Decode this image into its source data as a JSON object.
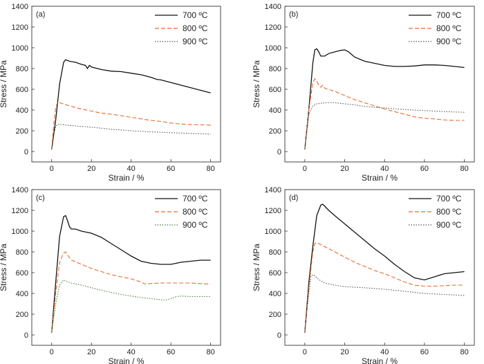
{
  "chart_data": [
    {
      "type": "line",
      "panel_label": "(a)",
      "xlabel": "Strain / %",
      "ylabel": "Stress / MPa",
      "xlim": [
        -10,
        85
      ],
      "ylim": [
        -100,
        1400
      ],
      "xticks": [
        "0",
        "20",
        "40",
        "60",
        "80"
      ],
      "yticks": [
        "0",
        "200",
        "400",
        "600",
        "800",
        "1000",
        "1200",
        "1400"
      ],
      "legend_position": "top-right",
      "series": [
        {
          "name": "700 ºC",
          "color": "#111111",
          "dash": "solid",
          "x": [
            0,
            2,
            4,
            6,
            7,
            9,
            12,
            15,
            17,
            18,
            19,
            20,
            25,
            30,
            35,
            40,
            45,
            50,
            53,
            55,
            60,
            65,
            70,
            75,
            80
          ],
          "y": [
            20,
            300,
            650,
            860,
            885,
            870,
            860,
            840,
            830,
            800,
            830,
            815,
            790,
            775,
            770,
            755,
            740,
            715,
            695,
            690,
            665,
            640,
            615,
            590,
            565
          ]
        },
        {
          "name": "800 ºC",
          "color": "#e8692e",
          "dash": "6,3",
          "x": [
            0,
            1,
            2,
            3,
            5,
            10,
            15,
            20,
            25,
            30,
            40,
            50,
            55,
            60,
            65,
            70,
            75,
            80
          ],
          "y": [
            20,
            250,
            420,
            478,
            465,
            435,
            410,
            390,
            370,
            360,
            330,
            300,
            290,
            275,
            265,
            260,
            258,
            255
          ]
        },
        {
          "name": "900 ºC",
          "color": "#555555",
          "dash": "1.5,2",
          "x": [
            0,
            1,
            2,
            3,
            5,
            10,
            20,
            30,
            40,
            50,
            60,
            70,
            80
          ],
          "y": [
            20,
            160,
            240,
            262,
            260,
            250,
            235,
            215,
            200,
            190,
            182,
            175,
            168
          ]
        }
      ]
    },
    {
      "type": "line",
      "panel_label": "(b)",
      "xlabel": "Strain / %",
      "ylabel": "Stress / MPa",
      "xlim": [
        -10,
        85
      ],
      "ylim": [
        -100,
        1400
      ],
      "xticks": [
        "0",
        "20",
        "40",
        "60",
        "80"
      ],
      "yticks": [
        "0",
        "200",
        "400",
        "600",
        "800",
        "1000",
        "1200",
        "1400"
      ],
      "legend_position": "top-right",
      "series": [
        {
          "name": "700 ºC",
          "color": "#111111",
          "dash": "solid",
          "x": [
            0,
            2,
            4,
            5,
            6,
            7,
            8,
            10,
            12,
            15,
            18,
            20,
            22,
            25,
            30,
            35,
            40,
            45,
            50,
            55,
            60,
            65,
            70,
            75,
            80
          ],
          "y": [
            20,
            400,
            850,
            980,
            990,
            960,
            920,
            920,
            945,
            960,
            975,
            980,
            960,
            910,
            870,
            850,
            830,
            820,
            820,
            825,
            835,
            835,
            830,
            820,
            810
          ]
        },
        {
          "name": "800 ºC",
          "color": "#e8692e",
          "dash": "6,3",
          "x": [
            0,
            2,
            4,
            5,
            6,
            7,
            8,
            9,
            10,
            15,
            20,
            25,
            30,
            35,
            40,
            45,
            50,
            55,
            60,
            65,
            70,
            75,
            80
          ],
          "y": [
            20,
            400,
            660,
            700,
            680,
            640,
            620,
            640,
            610,
            580,
            540,
            500,
            470,
            440,
            410,
            385,
            360,
            335,
            320,
            315,
            305,
            300,
            300
          ]
        },
        {
          "name": "900 ºC",
          "color": "#555555",
          "dash": "1.5,2",
          "x": [
            0,
            2,
            4,
            6,
            8,
            10,
            15,
            20,
            25,
            30,
            40,
            50,
            60,
            70,
            80
          ],
          "y": [
            20,
            350,
            440,
            460,
            465,
            470,
            470,
            460,
            450,
            435,
            420,
            405,
            395,
            385,
            378
          ]
        }
      ]
    },
    {
      "type": "line",
      "panel_label": "(c)",
      "xlabel": "Strain / %",
      "ylabel": "Stress / MPa",
      "xlim": [
        -10,
        85
      ],
      "ylim": [
        -100,
        1400
      ],
      "xticks": [
        "0",
        "20",
        "40",
        "60",
        "80"
      ],
      "yticks": [
        "0",
        "200",
        "400",
        "600",
        "800",
        "1000",
        "1200",
        "1400"
      ],
      "legend_position": "top-right",
      "series": [
        {
          "name": "700 ºC",
          "color": "#111111",
          "dash": "solid",
          "x": [
            0,
            2,
            4,
            6,
            7,
            8,
            9,
            10,
            12,
            15,
            20,
            25,
            30,
            35,
            40,
            45,
            50,
            55,
            60,
            65,
            70,
            75,
            80
          ],
          "y": [
            20,
            500,
            950,
            1140,
            1150,
            1100,
            1040,
            1020,
            1020,
            1000,
            980,
            940,
            880,
            820,
            760,
            710,
            690,
            680,
            680,
            700,
            710,
            720,
            720
          ]
        },
        {
          "name": "800 ºC",
          "color": "#e8692e",
          "dash": "6,3",
          "x": [
            0,
            2,
            4,
            6,
            7,
            8,
            10,
            15,
            20,
            25,
            30,
            35,
            40,
            45,
            47,
            50,
            55,
            60,
            65,
            70,
            75,
            80
          ],
          "y": [
            20,
            400,
            700,
            790,
            800,
            770,
            720,
            680,
            640,
            610,
            580,
            560,
            540,
            510,
            490,
            495,
            500,
            500,
            500,
            500,
            495,
            490
          ]
        },
        {
          "name": "900 ºC",
          "color": "#4a7a3a",
          "dash": "1.5,2",
          "x": [
            0,
            2,
            4,
            6,
            7,
            8,
            10,
            15,
            20,
            25,
            30,
            35,
            40,
            45,
            50,
            55,
            57,
            60,
            63,
            65,
            70,
            75,
            80
          ],
          "y": [
            20,
            300,
            480,
            530,
            520,
            510,
            500,
            480,
            455,
            430,
            410,
            390,
            375,
            360,
            350,
            340,
            335,
            350,
            370,
            375,
            370,
            370,
            370
          ]
        }
      ]
    },
    {
      "type": "line",
      "panel_label": "(d)",
      "xlabel": "Strain / %",
      "ylabel": "Stress / MPa",
      "xlim": [
        -10,
        85
      ],
      "ylim": [
        -100,
        1400
      ],
      "xticks": [
        "0",
        "20",
        "40",
        "60",
        "80"
      ],
      "yticks": [
        "0",
        "200",
        "400",
        "600",
        "800",
        "1000",
        "1200",
        "1400"
      ],
      "legend_position": "top-right",
      "series": [
        {
          "name": "700 ºC",
          "color": "#111111",
          "dash": "solid",
          "x": [
            0,
            2,
            4,
            6,
            8,
            9,
            10,
            12,
            15,
            20,
            25,
            30,
            35,
            40,
            45,
            50,
            55,
            60,
            65,
            70,
            75,
            80
          ],
          "y": [
            20,
            500,
            850,
            1150,
            1250,
            1260,
            1240,
            1200,
            1150,
            1070,
            990,
            910,
            830,
            760,
            680,
            610,
            550,
            530,
            560,
            590,
            600,
            610
          ]
        },
        {
          "name": "800 ºC",
          "color": "#e8692e",
          "dash": "6,3",
          "x": [
            0,
            2,
            4,
            5,
            6,
            8,
            10,
            15,
            20,
            25,
            30,
            35,
            40,
            45,
            50,
            55,
            60,
            65,
            70,
            75,
            80
          ],
          "y": [
            20,
            450,
            800,
            880,
            890,
            870,
            850,
            800,
            750,
            700,
            660,
            620,
            590,
            550,
            510,
            480,
            470,
            470,
            475,
            480,
            480
          ]
        },
        {
          "name": "900 ºC",
          "color": "#555555",
          "dash": "1.5,2",
          "x": [
            0,
            2,
            3,
            4,
            5,
            6,
            8,
            10,
            15,
            20,
            30,
            40,
            50,
            60,
            70,
            80
          ],
          "y": [
            20,
            400,
            560,
            580,
            570,
            550,
            520,
            500,
            480,
            465,
            455,
            440,
            420,
            400,
            390,
            380
          ]
        }
      ]
    }
  ]
}
